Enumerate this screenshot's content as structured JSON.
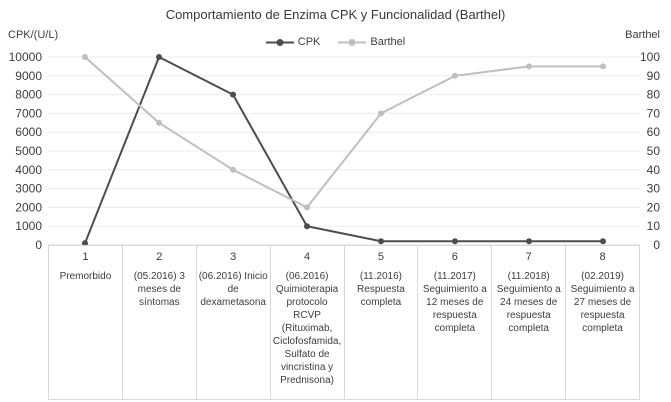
{
  "chart": {
    "title": "Comportamiento de Enzima CPK y Funcionalidad (Barthel)",
    "left_axis_label": "CPK/(U/L)",
    "right_axis_label": "Barthel"
  },
  "legend": {
    "items": [
      {
        "key": "cpk",
        "label": "CPK"
      },
      {
        "key": "barthel",
        "label": "Barthel"
      }
    ]
  },
  "colors": {
    "cpk": "#4d4d4d",
    "barthel": "#bfbfbf",
    "grid": "#ececec",
    "axis_border": "#d9d9d9",
    "text": "#3d3d3d",
    "title": "#383838"
  },
  "chart_data": {
    "type": "line",
    "title": "Comportamiento de Enzima CPK y Funcionalidad (Barthel)",
    "categories": [
      {
        "num": "1",
        "label": "Premorbido"
      },
      {
        "num": "2",
        "label": "(05.2016) 3 meses de síntomas"
      },
      {
        "num": "3",
        "label": "(06.2016) Inicio de dexametasona"
      },
      {
        "num": "4",
        "label": "(06.2016) Quimioterapia protocolo RCVP (Rituximab, Ciclofosfamida, Sulfato de vincristina y Prednisona)"
      },
      {
        "num": "5",
        "label": "(11.2016) Respuesta completa"
      },
      {
        "num": "6",
        "label": "(11.2017) Seguimiento a 12 meses de respuesta completa"
      },
      {
        "num": "7",
        "label": "(11.2018) Seguimiento a 24 meses de respuesta completa"
      },
      {
        "num": "8",
        "label": "(02.2019) Seguimiento a 27 meses de respuesta completa"
      }
    ],
    "series": [
      {
        "name": "CPK",
        "axis": "left",
        "values": [
          100,
          10000,
          8000,
          1000,
          200,
          200,
          200,
          200
        ]
      },
      {
        "name": "Barthel",
        "axis": "right",
        "values": [
          100,
          65,
          40,
          20,
          70,
          90,
          95,
          95
        ]
      }
    ],
    "left_axis": {
      "label": "CPK/(U/L)",
      "min": 0,
      "max": 10000,
      "step": 1000
    },
    "right_axis": {
      "label": "Barthel",
      "min": 0,
      "max": 100,
      "step": 10
    },
    "grid": true,
    "legend_position": "top-center"
  }
}
